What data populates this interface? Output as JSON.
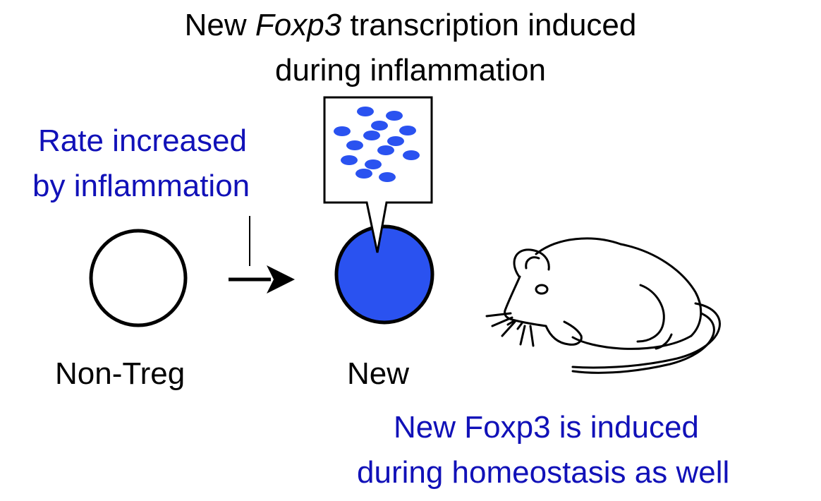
{
  "title": {
    "line1_prefix": "New ",
    "line1_gene": "Foxp3",
    "line1_suffix": " transcription induced",
    "line2": "during inflammation"
  },
  "rate_note": {
    "line1": "Rate increased",
    "line2": "by inflammation"
  },
  "cells": {
    "left_label": "Non-Treg",
    "right_label": "New"
  },
  "homeostasis_note": {
    "line1": "New Foxp3 is induced",
    "line2": "during homeostasis as well"
  },
  "colors": {
    "text_blue": "#1111b8",
    "cell_fill": "#2a52f0",
    "dot_fill": "#2a52f0",
    "stroke": "#000000"
  },
  "icons": {
    "mouse": "mouse-icon",
    "arrow": "arrow-right-icon"
  }
}
